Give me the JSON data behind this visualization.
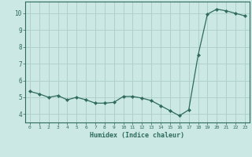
{
  "xlabel": "Humidex (Indice chaleur)",
  "ylabel": "",
  "x": [
    0,
    1,
    2,
    3,
    4,
    5,
    6,
    7,
    8,
    9,
    10,
    11,
    12,
    13,
    14,
    15,
    16,
    17,
    18,
    19,
    20,
    21,
    22,
    23
  ],
  "y": [
    5.35,
    5.2,
    5.0,
    5.1,
    4.85,
    5.0,
    4.85,
    4.65,
    4.65,
    4.7,
    5.05,
    5.05,
    4.95,
    4.8,
    4.5,
    4.2,
    3.9,
    4.25,
    7.5,
    9.95,
    10.25,
    10.15,
    10.0,
    9.85
  ],
  "line_color": "#2e6b5e",
  "marker": "D",
  "marker_size": 2.2,
  "bg_color": "#cce8e4",
  "grid_color": "#b0d0cc",
  "tick_color": "#2e6b5e",
  "label_color": "#2e6b5e",
  "ylim": [
    3.5,
    10.7
  ],
  "xlim": [
    -0.5,
    23.5
  ],
  "yticks": [
    4,
    5,
    6,
    7,
    8,
    9,
    10
  ],
  "xticks": [
    0,
    1,
    2,
    3,
    4,
    5,
    6,
    7,
    8,
    9,
    10,
    11,
    12,
    13,
    14,
    15,
    16,
    17,
    18,
    19,
    20,
    21,
    22,
    23
  ]
}
